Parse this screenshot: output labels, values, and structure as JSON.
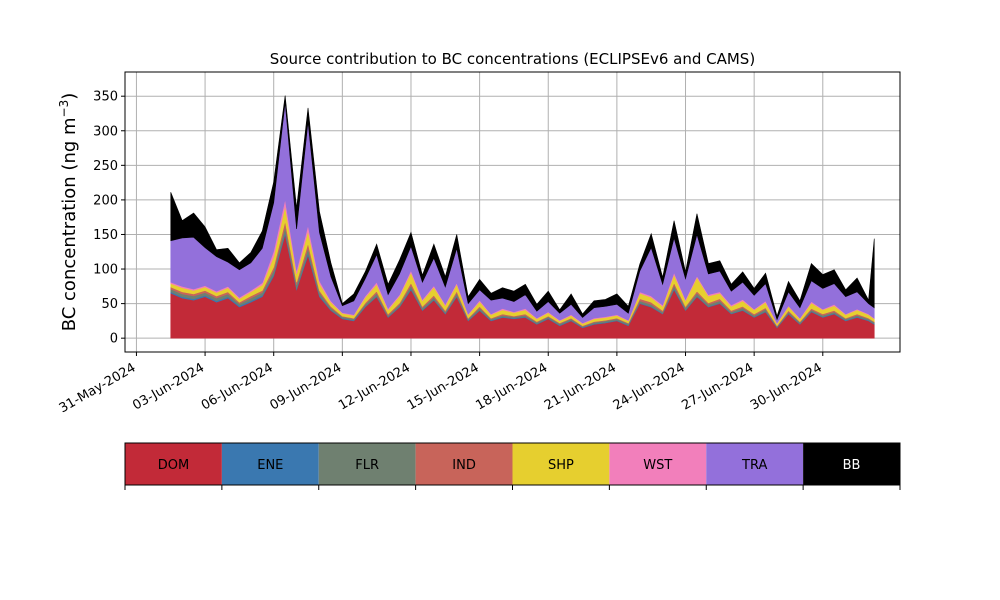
{
  "chart_data": {
    "type": "area",
    "title": "Source contribution to BC concentrations (ECLIPSEv6 and CAMS)",
    "xlabel": "",
    "ylabel": "BC concentration (ng m",
    "ylabel_unit_sup": "−3",
    "ylabel_close": ")",
    "ylim": [
      -20,
      385
    ],
    "yticks": [
      0,
      50,
      100,
      150,
      200,
      250,
      300,
      350
    ],
    "xlim": [
      "2024-05-30T12:00",
      "2024-07-03T09:00"
    ],
    "xticks": [
      "2024-05-31",
      "2024-06-03",
      "2024-06-06",
      "2024-06-09",
      "2024-06-12",
      "2024-06-15",
      "2024-06-18",
      "2024-06-21",
      "2024-06-24",
      "2024-06-27",
      "2024-06-30"
    ],
    "xtick_labels": [
      "31-May-2024",
      "03-Jun-2024",
      "06-Jun-2024",
      "09-Jun-2024",
      "12-Jun-2024",
      "15-Jun-2024",
      "18-Jun-2024",
      "21-Jun-2024",
      "24-Jun-2024",
      "27-Jun-2024",
      "30-Jun-2024"
    ],
    "grid": true,
    "stacked": true,
    "x": [
      "2024-06-01T12:00",
      "2024-06-02T00:00",
      "2024-06-02T12:00",
      "2024-06-03T00:00",
      "2024-06-03T12:00",
      "2024-06-04T00:00",
      "2024-06-04T12:00",
      "2024-06-05T00:00",
      "2024-06-05T12:00",
      "2024-06-06T00:00",
      "2024-06-06T12:00",
      "2024-06-07T00:00",
      "2024-06-07T12:00",
      "2024-06-08T00:00",
      "2024-06-08T12:00",
      "2024-06-09T00:00",
      "2024-06-09T12:00",
      "2024-06-10T00:00",
      "2024-06-10T12:00",
      "2024-06-11T00:00",
      "2024-06-11T12:00",
      "2024-06-12T00:00",
      "2024-06-12T12:00",
      "2024-06-13T00:00",
      "2024-06-13T12:00",
      "2024-06-14T00:00",
      "2024-06-14T12:00",
      "2024-06-15T00:00",
      "2024-06-15T12:00",
      "2024-06-16T00:00",
      "2024-06-16T12:00",
      "2024-06-17T00:00",
      "2024-06-17T12:00",
      "2024-06-18T00:00",
      "2024-06-18T12:00",
      "2024-06-19T00:00",
      "2024-06-19T12:00",
      "2024-06-20T00:00",
      "2024-06-20T12:00",
      "2024-06-21T00:00",
      "2024-06-21T12:00",
      "2024-06-22T00:00",
      "2024-06-22T12:00",
      "2024-06-23T00:00",
      "2024-06-23T12:00",
      "2024-06-24T00:00",
      "2024-06-24T12:00",
      "2024-06-25T00:00",
      "2024-06-25T12:00",
      "2024-06-26T00:00",
      "2024-06-26T12:00",
      "2024-06-27T00:00",
      "2024-06-27T12:00",
      "2024-06-28T00:00",
      "2024-06-28T12:00",
      "2024-06-29T00:00",
      "2024-06-29T12:00",
      "2024-06-30T00:00",
      "2024-06-30T12:00",
      "2024-07-01T00:00",
      "2024-07-01T12:00",
      "2024-07-02T00:00",
      "2024-07-02T06:00"
    ],
    "series": [
      {
        "name": "DOM",
        "color": "#c22a38",
        "values": [
          65,
          58,
          55,
          60,
          52,
          58,
          45,
          52,
          60,
          90,
          150,
          70,
          120,
          60,
          40,
          28,
          25,
          45,
          60,
          30,
          45,
          70,
          40,
          55,
          35,
          60,
          25,
          40,
          25,
          30,
          28,
          30,
          20,
          28,
          18,
          25,
          15,
          20,
          22,
          25,
          18,
          50,
          45,
          35,
          70,
          40,
          60,
          45,
          50,
          35,
          40,
          30,
          38,
          15,
          35,
          20,
          38,
          30,
          35,
          25,
          30,
          25,
          20
        ]
      },
      {
        "name": "ENE",
        "color": "#3a78b0",
        "values": [
          2,
          2,
          2,
          2,
          2,
          2,
          2,
          2,
          2,
          2,
          3,
          2,
          3,
          2,
          1,
          1,
          1,
          1,
          1,
          1,
          1,
          2,
          1,
          1,
          1,
          1,
          1,
          1,
          1,
          1,
          1,
          1,
          1,
          1,
          1,
          1,
          1,
          1,
          1,
          1,
          1,
          1,
          1,
          1,
          2,
          1,
          1,
          1,
          1,
          1,
          1,
          1,
          1,
          1,
          1,
          1,
          1,
          1,
          1,
          1,
          1,
          1,
          1
        ]
      },
      {
        "name": "FLR",
        "color": "#6f8070",
        "values": [
          4,
          4,
          4,
          4,
          4,
          4,
          3,
          4,
          4,
          6,
          8,
          5,
          7,
          4,
          3,
          2,
          2,
          3,
          4,
          2,
          3,
          4,
          3,
          3,
          2,
          4,
          2,
          3,
          2,
          2,
          2,
          2,
          2,
          2,
          2,
          2,
          1,
          2,
          2,
          2,
          2,
          3,
          3,
          2,
          4,
          3,
          4,
          3,
          3,
          2,
          3,
          2,
          3,
          1,
          2,
          2,
          2,
          2,
          2,
          2,
          2,
          2,
          2
        ]
      },
      {
        "name": "IND",
        "color": "#c8645a",
        "values": [
          3,
          3,
          3,
          3,
          3,
          3,
          2,
          3,
          3,
          5,
          8,
          4,
          7,
          3,
          2,
          1,
          1,
          2,
          3,
          2,
          2,
          4,
          2,
          3,
          2,
          3,
          1,
          2,
          1,
          2,
          1,
          2,
          1,
          1,
          1,
          1,
          1,
          1,
          1,
          1,
          1,
          3,
          3,
          2,
          4,
          2,
          3,
          2,
          3,
          2,
          2,
          2,
          2,
          1,
          2,
          1,
          2,
          2,
          2,
          1,
          2,
          1,
          1
        ]
      },
      {
        "name": "SHP",
        "color": "#e6cf2f",
        "values": [
          5,
          6,
          5,
          5,
          5,
          6,
          5,
          6,
          8,
          15,
          22,
          12,
          18,
          10,
          6,
          4,
          4,
          8,
          10,
          6,
          10,
          15,
          8,
          12,
          7,
          10,
          5,
          7,
          5,
          6,
          5,
          6,
          4,
          5,
          3,
          4,
          3,
          4,
          4,
          4,
          3,
          8,
          7,
          6,
          12,
          8,
          20,
          10,
          8,
          6,
          8,
          6,
          8,
          3,
          6,
          4,
          8,
          6,
          7,
          5,
          6,
          5,
          4
        ]
      },
      {
        "name": "WST",
        "color": "#f27fbb",
        "values": [
          2,
          2,
          2,
          2,
          2,
          2,
          2,
          2,
          3,
          8,
          10,
          5,
          8,
          4,
          2,
          1,
          1,
          2,
          3,
          2,
          2,
          3,
          2,
          2,
          2,
          2,
          1,
          2,
          1,
          2,
          1,
          2,
          1,
          1,
          1,
          1,
          1,
          1,
          1,
          1,
          1,
          2,
          2,
          2,
          3,
          2,
          2,
          2,
          2,
          2,
          2,
          1,
          2,
          1,
          1,
          1,
          2,
          1,
          2,
          1,
          1,
          1,
          1
        ]
      },
      {
        "name": "TRA",
        "color": "#9370db",
        "values": [
          60,
          70,
          75,
          55,
          50,
          35,
          40,
          40,
          50,
          70,
          140,
          60,
          150,
          70,
          35,
          10,
          20,
          25,
          40,
          20,
          30,
          35,
          25,
          40,
          25,
          50,
          15,
          15,
          20,
          15,
          15,
          20,
          10,
          15,
          10,
          15,
          8,
          15,
          15,
          15,
          10,
          30,
          70,
          30,
          50,
          30,
          60,
          30,
          30,
          20,
          25,
          20,
          25,
          5,
          20,
          15,
          30,
          30,
          30,
          25,
          25,
          15,
          15
        ]
      },
      {
        "name": "BB",
        "color": "#000000",
        "values": [
          70,
          25,
          35,
          30,
          10,
          20,
          10,
          15,
          25,
          30,
          10,
          30,
          20,
          30,
          20,
          3,
          10,
          10,
          15,
          15,
          20,
          20,
          10,
          20,
          15,
          20,
          10,
          15,
          10,
          15,
          15,
          15,
          10,
          15,
          5,
          15,
          5,
          10,
          10,
          15,
          10,
          10,
          20,
          10,
          25,
          10,
          30,
          15,
          15,
          10,
          15,
          10,
          15,
          5,
          15,
          10,
          25,
          20,
          20,
          10,
          20,
          5,
          100
        ]
      }
    ]
  }
}
